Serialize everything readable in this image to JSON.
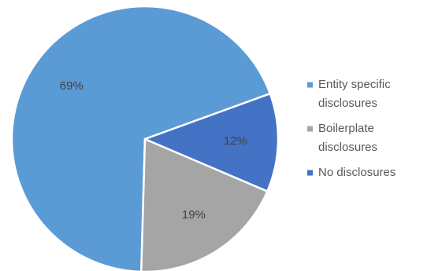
{
  "chart_data": {
    "type": "pie",
    "title": "",
    "start_angle_deg": 20,
    "direction": "counterclockwise",
    "legend_position": "right",
    "slices": [
      {
        "name": "Entity specific disclosures",
        "legend_lines": [
          "Entity specific",
          "disclosures"
        ],
        "value": 69,
        "label": "69%",
        "color": "#5B9BD5"
      },
      {
        "name": "Boilerplate disclosures",
        "legend_lines": [
          "Boilerplate",
          "disclosures"
        ],
        "value": 19,
        "label": "19%",
        "color": "#A5A5A5"
      },
      {
        "name": "No disclosures",
        "legend_lines": [
          "No disclosures"
        ],
        "value": 12,
        "label": "12%",
        "color": "#4472C4"
      }
    ]
  }
}
